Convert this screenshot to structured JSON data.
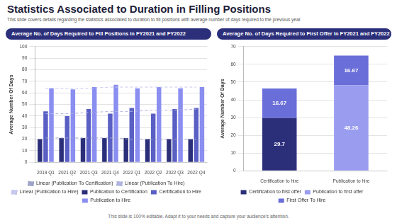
{
  "header": {
    "title": "Statistics Associated to Duration in Filling Positions",
    "subtitle": "This slide covers details regarding the statistics associated to duration to fill positions with average number of days required to the previous year."
  },
  "chart_data": [
    {
      "type": "bar",
      "title": "Average No. of Days Required to Fill Positions in FY2021 and FY2022",
      "y_label": "Average Number Of Days",
      "categories": [
        "2019 Q1",
        "2021 Q2",
        "2021 Q3",
        "2021 Q4",
        "2022 Q1",
        "2022 Q2",
        "2022 Q3",
        "2022 Q4"
      ],
      "series": [
        {
          "name": "Publication to Certification",
          "color": "#2b2f7a",
          "values": [
            20,
            21,
            21,
            21,
            21,
            20,
            20,
            20
          ]
        },
        {
          "name": "Linear (Publication To Certification)",
          "color": "#9ea3c9",
          "type": "line",
          "line_style": "dashed",
          "marker": "none",
          "values": [
            21,
            21,
            21,
            21,
            20,
            20,
            20,
            20
          ]
        },
        {
          "name": "Certification to Hire",
          "color": "#5a5fc4",
          "values": [
            44,
            40,
            46,
            42,
            47,
            42,
            46,
            47
          ]
        },
        {
          "name": "Linear (Publication To Hire)",
          "color": "#b1b4e0",
          "type": "line",
          "line_style": "dashed",
          "marker": "none",
          "values": [
            42,
            42,
            43,
            44,
            44,
            45,
            45,
            46
          ]
        },
        {
          "name": "Publication to Hire",
          "color": "#8a8ef0",
          "values": [
            64,
            63,
            65,
            67,
            64,
            65,
            64,
            65
          ]
        },
        {
          "name": "Linear (Publication to Hire)",
          "color": "#c6c8ee",
          "type": "line",
          "line_style": "dashed",
          "marker": "none",
          "values": [
            64,
            64,
            64,
            65,
            65,
            65,
            65,
            65
          ]
        }
      ],
      "ylim": [
        0,
        100
      ],
      "yticks": [
        0,
        10,
        20,
        30,
        40,
        50,
        60,
        70,
        80,
        90,
        100
      ],
      "grid": true,
      "legend": "bottom"
    },
    {
      "type": "bar",
      "title": "Average No. of Days Required to First Offer in FY2021 and FY2022",
      "y_label": "Average Number Of Days",
      "categories": [
        "Certification to hire",
        "Publication to hire"
      ],
      "series": [
        {
          "name": "Certification to first offer",
          "color": "#2b2f7a",
          "values": [
            29.7,
            null
          ]
        },
        {
          "name": "Publication to first offer",
          "color": "#9a9cf0",
          "values": [
            null,
            48.26
          ]
        },
        {
          "name": "First Offer To Hire",
          "color": "#6a6ed8",
          "values": [
            16.67,
            16.67
          ]
        }
      ],
      "ylim": [
        0,
        70
      ],
      "yticks": [
        0,
        10,
        20,
        30,
        40,
        50,
        60,
        70
      ],
      "stacked": true,
      "data_labels": true,
      "grid": true,
      "legend": "bottom"
    }
  ],
  "footer": "This slide is 100% editable. Adapt it to your needs and capture your audience's attention."
}
